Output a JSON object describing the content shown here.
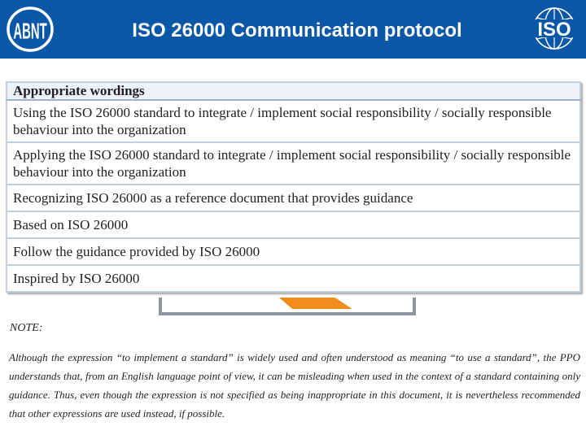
{
  "header": {
    "title": "ISO 26000 Communication protocol",
    "left_logo": "ABNT",
    "right_logo": "ISO",
    "background_color": "#0a56a7"
  },
  "table": {
    "header": "Appropriate wordings",
    "rows": [
      "Using the ISO 26000 standard to integrate / implement social responsibility / socially responsible behaviour into the organization",
      "Applying the ISO 26000 standard to integrate / implement social responsibility / socially responsible behaviour into the organization",
      "Recognizing ISO 26000 as a reference document that provides guidance",
      "Based on ISO 26000",
      "Follow the guidance provided by ISO 26000",
      "Inspired by ISO 26000"
    ]
  },
  "note": {
    "label": "NOTE:",
    "text": "Although the expression “to implement a standard” is widely used and often understood as meaning “to use a standard”, the PPO understands that, from an English language point of view, it can be misleading when used in the context of a standard containing only guidance. Thus, even though the expression is not specified as being inappropriate in this document, it is nevertheless recommended that other expressions are used instead, if possible."
  }
}
